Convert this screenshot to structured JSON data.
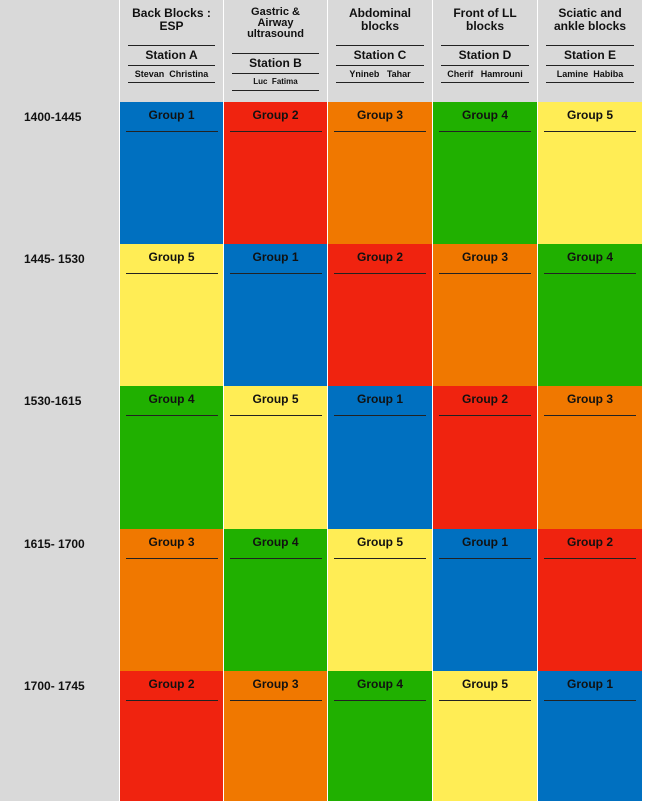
{
  "colors": {
    "group_1": "#0070c0",
    "group_2": "#f0230f",
    "group_3": "#f07800",
    "group_4": "#20b000",
    "group_5": "#ffed55",
    "header_bg": "#d9d9d9"
  },
  "stations": [
    {
      "title": "Back Blocks :\nESP",
      "station": "Station A",
      "names": "Stevan  Christina"
    },
    {
      "title": "Gastric &\nAirway\nultrasound",
      "station": "Station B",
      "names": "Luc  Fatima"
    },
    {
      "title": "Abdominal\nblocks",
      "station": "Station C",
      "names": "Ynineb   Tahar"
    },
    {
      "title": "Front of LL\nblocks",
      "station": "Station D",
      "names": "Cherif   Hamrouni"
    },
    {
      "title": "Sciatic and\nankle blocks",
      "station": "Station E",
      "names": "Lamine  Habiba"
    }
  ],
  "rows": [
    {
      "time": "1400-1445",
      "groups": [
        "Group 1",
        "Group 2",
        "Group 3",
        "Group 4",
        "Group 5"
      ],
      "color_keys": [
        1,
        2,
        3,
        4,
        5
      ]
    },
    {
      "time": "1445- 1530",
      "groups": [
        "Group 5",
        "Group 1",
        "Group 2",
        "Group  3",
        "Group 4"
      ],
      "color_keys": [
        5,
        1,
        2,
        3,
        4
      ]
    },
    {
      "time": "1530-1615",
      "groups": [
        "Group 4",
        "Group 5",
        "Group 1",
        "Group 2",
        "Group 3"
      ],
      "color_keys": [
        4,
        5,
        1,
        2,
        3
      ]
    },
    {
      "time": "1615- 1700",
      "groups": [
        "Group 3",
        "Group 4",
        "Group 5",
        "Group 1",
        "Group 2"
      ],
      "color_keys": [
        3,
        4,
        5,
        1,
        2
      ]
    },
    {
      "time": "1700- 1745",
      "groups": [
        "Group 2",
        "Group 3",
        "Group 4",
        "Group 5",
        "Group 1"
      ],
      "color_keys": [
        2,
        3,
        4,
        5,
        1
      ]
    }
  ]
}
